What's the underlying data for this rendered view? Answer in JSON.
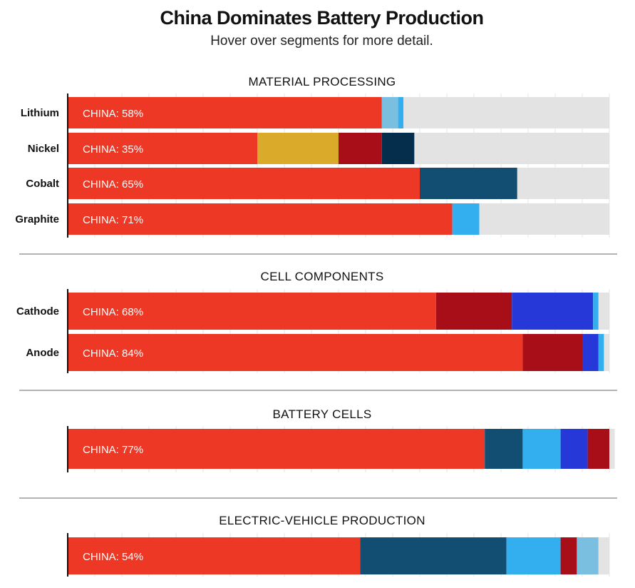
{
  "page": {
    "title": "China Dominates Battery Production",
    "subtitle": "Hover over segments for more detail."
  },
  "colors": {
    "china": "#EE3826",
    "gold": "#DAAB2B",
    "dark_red": "#A80E18",
    "navy": "#052E4D",
    "steel_blue": "#124D72",
    "sky_blue": "#33AFEF",
    "light_blue": "#7BBFE0",
    "royal_blue": "#2638D8",
    "rest": "#E3E3E3"
  },
  "chart_data": {
    "type": "bar",
    "orientation": "horizontal",
    "stacked": true,
    "xlim": [
      0,
      100
    ],
    "sections": [
      {
        "title": "MATERIAL PROCESSING",
        "rows": [
          {
            "label": "Lithium",
            "china_label": "CHINA: 58%",
            "segments": [
              {
                "color": "china",
                "value": 58
              },
              {
                "color": "light_blue",
                "value": 3
              },
              {
                "color": "sky_blue",
                "value": 1
              },
              {
                "color": "rest",
                "value": 38
              }
            ]
          },
          {
            "label": "Nickel",
            "china_label": "CHINA: 35%",
            "segments": [
              {
                "color": "china",
                "value": 35
              },
              {
                "color": "gold",
                "value": 15
              },
              {
                "color": "dark_red",
                "value": 8
              },
              {
                "color": "navy",
                "value": 6
              },
              {
                "color": "rest",
                "value": 36
              }
            ]
          },
          {
            "label": "Cobalt",
            "china_label": "CHINA: 65%",
            "segments": [
              {
                "color": "china",
                "value": 65
              },
              {
                "color": "steel_blue",
                "value": 18
              },
              {
                "color": "rest",
                "value": 17
              }
            ]
          },
          {
            "label": "Graphite",
            "china_label": "CHINA: 71%",
            "segments": [
              {
                "color": "china",
                "value": 71
              },
              {
                "color": "sky_blue",
                "value": 5
              },
              {
                "color": "rest",
                "value": 24
              }
            ]
          }
        ]
      },
      {
        "title": "CELL COMPONENTS",
        "rows": [
          {
            "label": "Cathode",
            "china_label": "CHINA: 68%",
            "segments": [
              {
                "color": "china",
                "value": 68
              },
              {
                "color": "dark_red",
                "value": 14
              },
              {
                "color": "royal_blue",
                "value": 15
              },
              {
                "color": "sky_blue",
                "value": 1
              },
              {
                "color": "rest",
                "value": 2
              }
            ]
          },
          {
            "label": "Anode",
            "china_label": "CHINA: 84%",
            "segments": [
              {
                "color": "china",
                "value": 84
              },
              {
                "color": "dark_red",
                "value": 11
              },
              {
                "color": "royal_blue",
                "value": 3
              },
              {
                "color": "sky_blue",
                "value": 1
              },
              {
                "color": "rest",
                "value": 1
              }
            ]
          }
        ]
      },
      {
        "title": "BATTERY CELLS",
        "rows": [
          {
            "label": "",
            "china_label": "CHINA: 77%",
            "segments": [
              {
                "color": "china",
                "value": 77
              },
              {
                "color": "steel_blue",
                "value": 7
              },
              {
                "color": "sky_blue",
                "value": 7
              },
              {
                "color": "royal_blue",
                "value": 5
              },
              {
                "color": "dark_red",
                "value": 4
              },
              {
                "color": "rest",
                "value": 1
              }
            ]
          }
        ]
      },
      {
        "title": "ELECTRIC-VEHICLE PRODUCTION",
        "rows": [
          {
            "label": "",
            "china_label": "CHINA: 54%",
            "segments": [
              {
                "color": "china",
                "value": 54
              },
              {
                "color": "steel_blue",
                "value": 27
              },
              {
                "color": "sky_blue",
                "value": 10
              },
              {
                "color": "dark_red",
                "value": 3
              },
              {
                "color": "light_blue",
                "value": 4
              },
              {
                "color": "rest",
                "value": 2
              }
            ]
          }
        ]
      }
    ]
  }
}
